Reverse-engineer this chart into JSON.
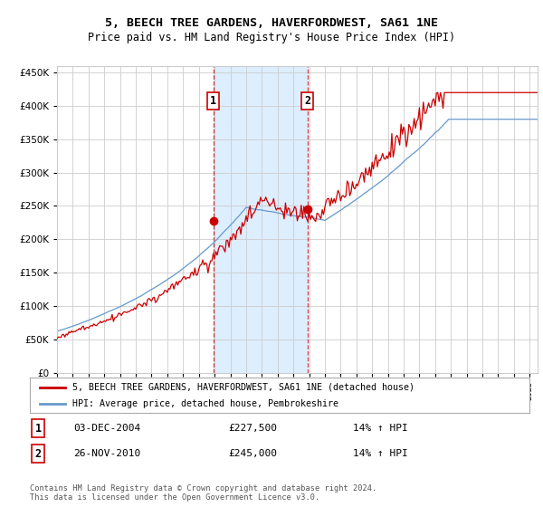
{
  "title": "5, BEECH TREE GARDENS, HAVERFORDWEST, SA61 1NE",
  "subtitle": "Price paid vs. HM Land Registry's House Price Index (HPI)",
  "ylim": [
    0,
    460000
  ],
  "yticks": [
    0,
    50000,
    100000,
    150000,
    200000,
    250000,
    300000,
    350000,
    400000,
    450000
  ],
  "sale1_year": 2004.92,
  "sale1_price": 227500,
  "sale2_year": 2010.9,
  "sale2_price": 245000,
  "legend_red": "5, BEECH TREE GARDENS, HAVERFORDWEST, SA61 1NE (detached house)",
  "legend_blue": "HPI: Average price, detached house, Pembrokeshire",
  "ann1_date": "03-DEC-2004",
  "ann1_price": "£227,500",
  "ann1_hpi": "14% ↑ HPI",
  "ann2_date": "26-NOV-2010",
  "ann2_price": "£245,000",
  "ann2_hpi": "14% ↑ HPI",
  "footer": "Contains HM Land Registry data © Crown copyright and database right 2024.\nThis data is licensed under the Open Government Licence v3.0.",
  "red_color": "#cc0000",
  "blue_color": "#6699cc",
  "shade_color": "#ddeeff",
  "box_color": "#cc0000",
  "background": "#ffffff",
  "grid_color": "#cccccc",
  "xlim_start": 1995,
  "xlim_end": 2025.5
}
